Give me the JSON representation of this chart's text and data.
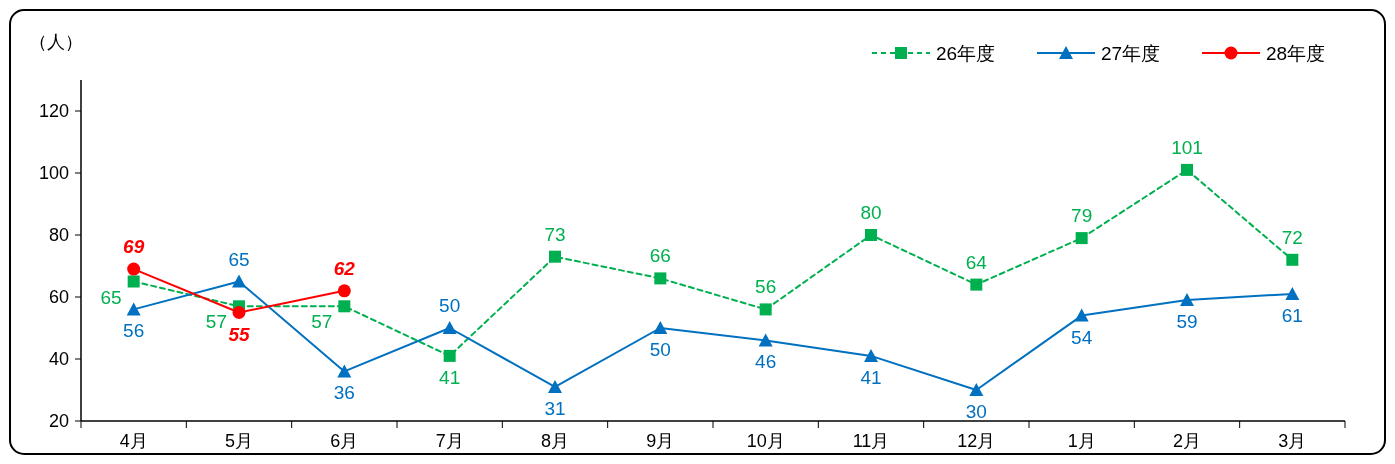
{
  "chart_data": {
    "type": "line",
    "ylabel": "（人）",
    "categories": [
      "4月",
      "5月",
      "6月",
      "7月",
      "8月",
      "9月",
      "10月",
      "11月",
      "12月",
      "1月",
      "2月",
      "3月"
    ],
    "series": [
      {
        "name": "26年度",
        "color": "#00b050",
        "marker": "square",
        "line_style": "dashed",
        "values": [
          65,
          57,
          57,
          41,
          73,
          66,
          56,
          80,
          64,
          79,
          101,
          72
        ]
      },
      {
        "name": "27年度",
        "color": "#0070c0",
        "marker": "triangle",
        "line_style": "solid",
        "values": [
          56,
          65,
          36,
          50,
          31,
          50,
          46,
          41,
          30,
          54,
          59,
          61
        ]
      },
      {
        "name": "28年度",
        "color": "#ff0000",
        "marker": "circle",
        "line_style": "solid",
        "values": [
          69,
          55,
          62,
          null,
          null,
          null,
          null,
          null,
          null,
          null,
          null,
          null
        ]
      }
    ],
    "ylim": [
      20,
      130
    ],
    "yticks": [
      20,
      40,
      60,
      80,
      100,
      120
    ],
    "grid": false,
    "legend": "top right",
    "data_labels": true
  }
}
